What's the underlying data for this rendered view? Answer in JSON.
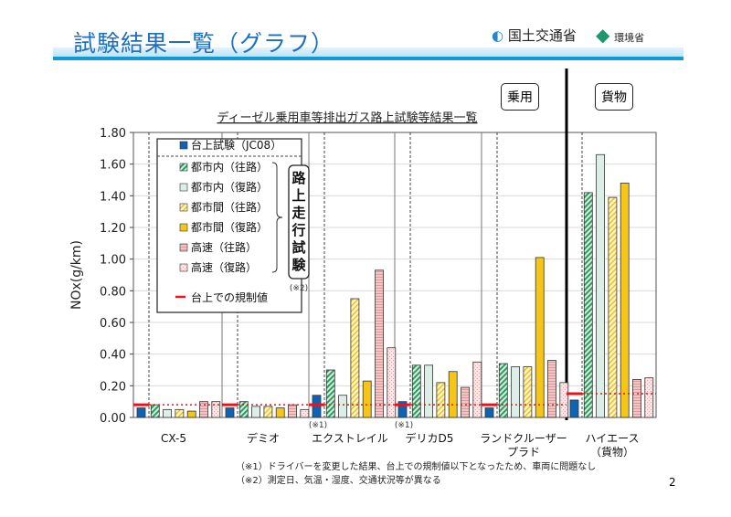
{
  "header": {
    "title": "試験結果一覧（グラフ）",
    "logo_mlit": "国土交通省",
    "logo_env": "環境省"
  },
  "section_labels": {
    "passenger": "乗用",
    "cargo": "貨物"
  },
  "footnotes": [
    "（※1）ドライバーを変更した結果、台上での規制値以下となったため、車両に問題なし",
    "（※2）測定日、気温・湿度、交通状況等が異なる"
  ],
  "page_number": "2",
  "colors": {
    "bench": "#0f63b5",
    "limit": "#e8141a",
    "gold": "#f5c518",
    "title": "#1f6fbf"
  },
  "chart_data": {
    "type": "bar",
    "title": "ディーゼル乗用車等排出ガス路上試験等結果一覧",
    "ylabel": "NOx(g/km)",
    "ylim": [
      0,
      1.8
    ],
    "yticks": [
      "0.00",
      "0.20",
      "0.40",
      "0.60",
      "0.80",
      "1.00",
      "1.20",
      "1.40",
      "1.60",
      "1.80"
    ],
    "grid": true,
    "legend_placement": "top-left",
    "legend_group_label": "路上走行試験",
    "legend_group_note": "(※2)",
    "categories": [
      "CX-5",
      "デミオ",
      "エクストレイル",
      "デリカD5",
      "ランドクルーザー\nプラド",
      "ハイエース\n（貨物）"
    ],
    "category_notes": [
      "",
      "",
      "(※1)",
      "(※1)",
      "",
      ""
    ],
    "series": [
      {
        "name": "台上試験（JC08）",
        "values": [
          0.06,
          0.06,
          0.14,
          0.1,
          0.06,
          0.11
        ]
      },
      {
        "name": "都市内（往路）",
        "values": [
          0.08,
          0.1,
          0.3,
          0.33,
          0.34,
          1.42
        ]
      },
      {
        "name": "都市内（復路）",
        "values": [
          0.05,
          0.07,
          0.14,
          0.33,
          0.32,
          1.66
        ]
      },
      {
        "name": "都市間（往路）",
        "values": [
          0.05,
          0.07,
          0.75,
          0.22,
          0.32,
          1.39
        ]
      },
      {
        "name": "都市間（復路）",
        "values": [
          0.04,
          0.06,
          0.23,
          0.29,
          1.01,
          1.48
        ]
      },
      {
        "name": "高速（往路）",
        "values": [
          0.1,
          0.08,
          0.93,
          0.19,
          0.36,
          0.24
        ]
      },
      {
        "name": "高速（復路）",
        "values": [
          0.1,
          0.05,
          0.44,
          0.35,
          0.22,
          0.25
        ]
      }
    ],
    "limit": {
      "name": "台上での規制値",
      "values": [
        0.08,
        0.08,
        0.08,
        0.08,
        0.08,
        0.15
      ]
    }
  }
}
